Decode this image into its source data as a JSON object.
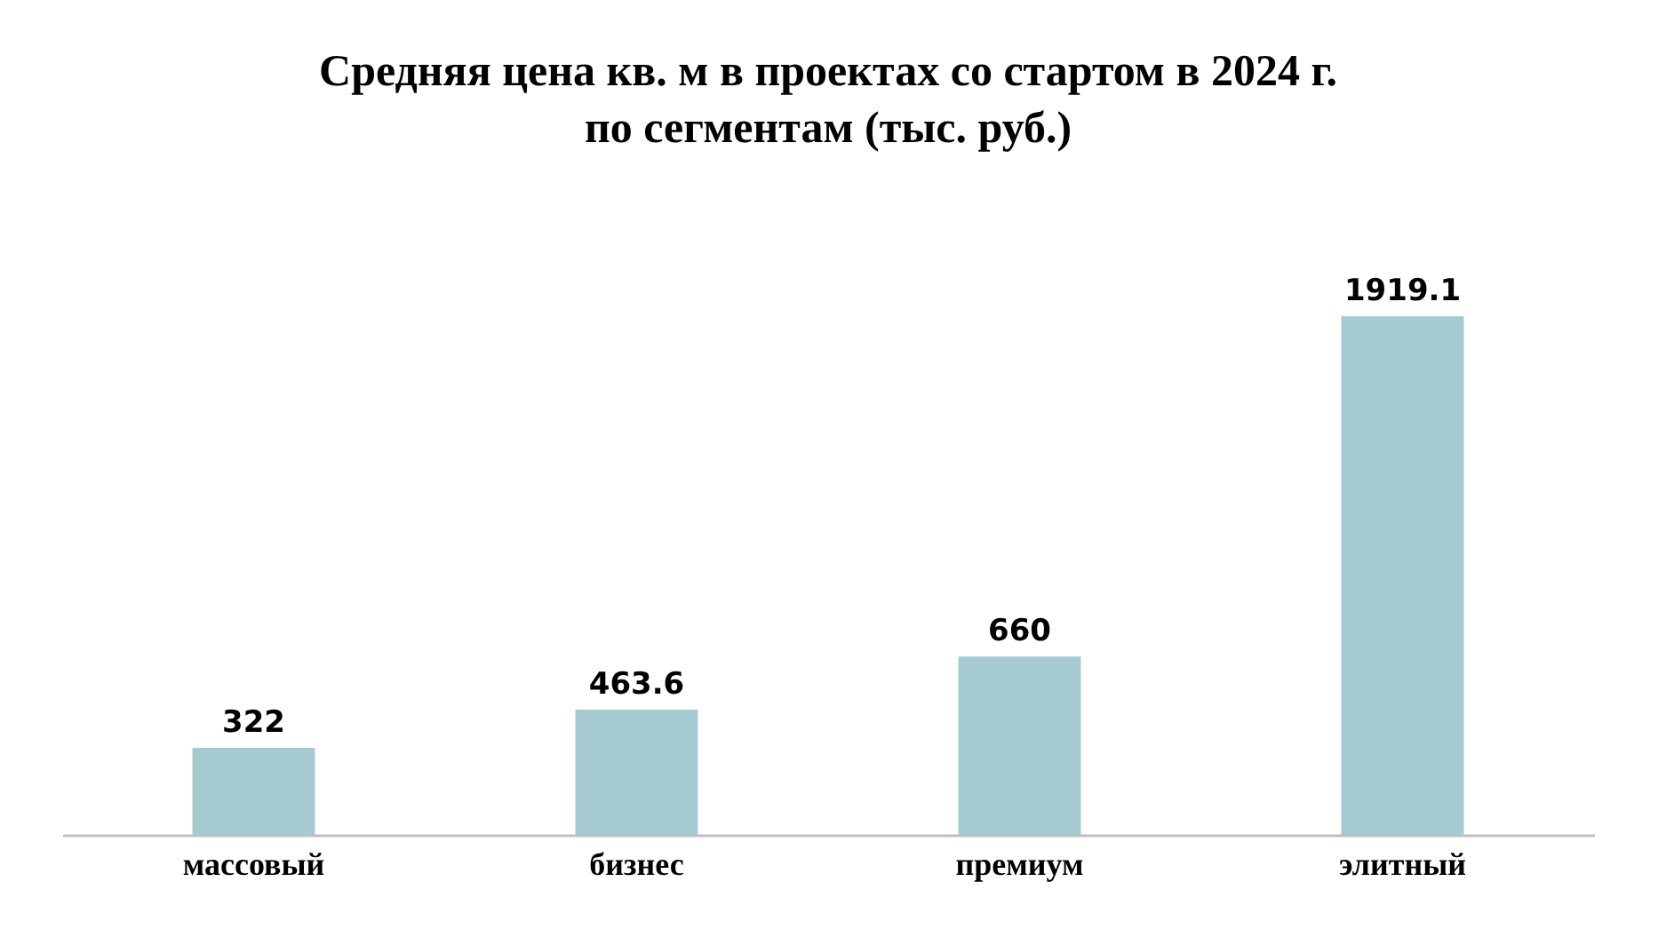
{
  "chart_data": {
    "type": "bar",
    "title": "Средняя цена кв. м в проектах со стартом в 2024 г.\nпо сегментам (тыс. руб.)",
    "categories": [
      "массовый",
      "бизнес",
      "премиум",
      "элитный"
    ],
    "values": [
      322,
      463.6,
      660,
      1919.1
    ],
    "color": "#a5cad2",
    "data_labels": true
  }
}
